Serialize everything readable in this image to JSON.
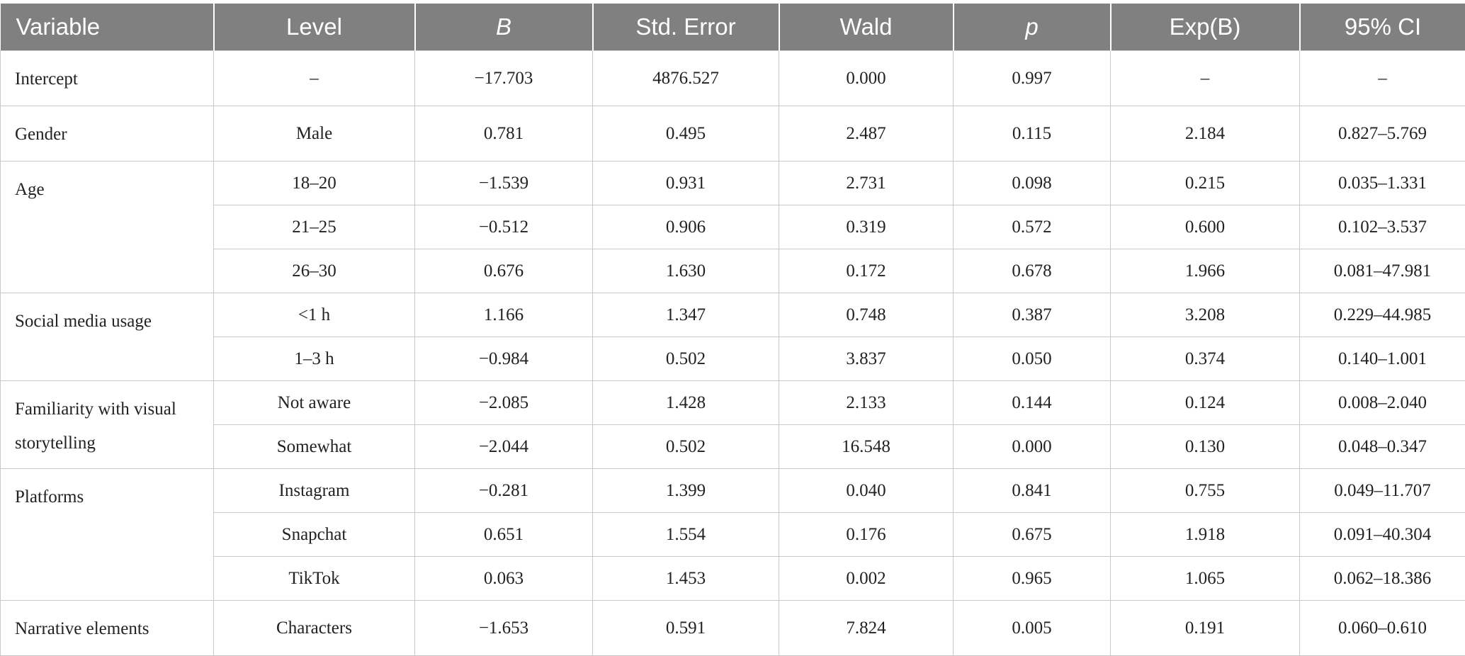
{
  "table": {
    "headers": [
      "Variable",
      "Level",
      "B",
      "Std. Error",
      "Wald",
      "p",
      "Exp(B)",
      "95% CI"
    ],
    "groups": [
      {
        "variable": "Intercept",
        "rows": [
          [
            "–",
            "−17.703",
            "4876.527",
            "0.000",
            "0.997",
            "–",
            "–"
          ]
        ]
      },
      {
        "variable": "Gender",
        "rows": [
          [
            "Male",
            "0.781",
            "0.495",
            "2.487",
            "0.115",
            "2.184",
            "0.827–5.769"
          ]
        ]
      },
      {
        "variable": "Age",
        "rows": [
          [
            "18–20",
            "−1.539",
            "0.931",
            "2.731",
            "0.098",
            "0.215",
            "0.035–1.331"
          ],
          [
            "21–25",
            "−0.512",
            "0.906",
            "0.319",
            "0.572",
            "0.600",
            "0.102–3.537"
          ],
          [
            "26–30",
            "0.676",
            "1.630",
            "0.172",
            "0.678",
            "1.966",
            "0.081–47.981"
          ]
        ]
      },
      {
        "variable": "Social media usage",
        "rows": [
          [
            "<1 h",
            "1.166",
            "1.347",
            "0.748",
            "0.387",
            "3.208",
            "0.229–44.985"
          ],
          [
            "1–3 h",
            "−0.984",
            "0.502",
            "3.837",
            "0.050",
            "0.374",
            "0.140–1.001"
          ]
        ]
      },
      {
        "variable": "Familiarity with visual storytelling",
        "rows": [
          [
            "Not aware",
            "−2.085",
            "1.428",
            "2.133",
            "0.144",
            "0.124",
            "0.008–2.040"
          ],
          [
            "Somewhat",
            "−2.044",
            "0.502",
            "16.548",
            "0.000",
            "0.130",
            "0.048–0.347"
          ]
        ]
      },
      {
        "variable": "Platforms",
        "rows": [
          [
            "Instagram",
            "−0.281",
            "1.399",
            "0.040",
            "0.841",
            "0.755",
            "0.049–11.707"
          ],
          [
            "Snapchat",
            "0.651",
            "1.554",
            "0.176",
            "0.675",
            "1.918",
            "0.091–40.304"
          ],
          [
            "TikTok",
            "0.063",
            "1.453",
            "0.002",
            "0.965",
            "1.065",
            "0.062–18.386"
          ]
        ]
      },
      {
        "variable": "Narrative elements",
        "rows": [
          [
            "Characters",
            "−1.653",
            "0.591",
            "7.824",
            "0.005",
            "0.191",
            "0.060–0.610"
          ]
        ]
      }
    ]
  }
}
